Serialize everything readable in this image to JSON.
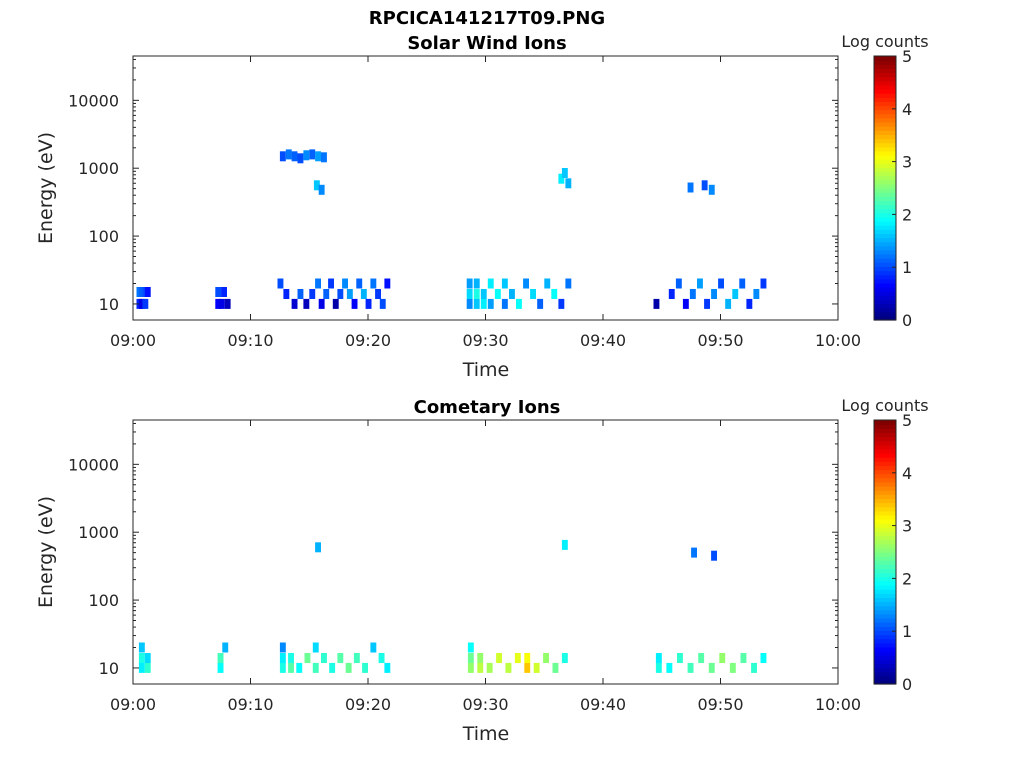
{
  "figure": {
    "title": "RPCICA141217T09.PNG"
  },
  "colorbar_label": "Log counts",
  "colorbar_ticks": [
    "0",
    "1",
    "2",
    "3",
    "4",
    "5"
  ],
  "chart_data": [
    {
      "type": "heatmap",
      "title": "Solar Wind Ions",
      "xlabel": "Time",
      "ylabel": "Energy (eV)",
      "x_ticks": [
        "09:00",
        "09:10",
        "09:20",
        "09:30",
        "09:40",
        "09:50",
        "10:00"
      ],
      "x_range_minutes": [
        0,
        60
      ],
      "y_ticks": [
        "10",
        "100",
        "1000",
        "10000"
      ],
      "y_scale": "log",
      "y_range": [
        5.8,
        45000
      ],
      "colorbar": {
        "label": "Log counts",
        "range": [
          0,
          5
        ],
        "colormap": "jet"
      },
      "cells": [
        [
          0.3,
          10,
          0.8
        ],
        [
          0.3,
          15,
          1.2
        ],
        [
          0.5,
          10,
          0.5
        ],
        [
          0.5,
          15,
          1.1
        ],
        [
          0.8,
          10,
          0.9
        ],
        [
          0.8,
          15,
          1.0
        ],
        [
          1.0,
          15,
          0.7
        ],
        [
          7.0,
          10,
          0.6
        ],
        [
          7.0,
          15,
          1.0
        ],
        [
          7.3,
          10,
          0.5
        ],
        [
          7.5,
          15,
          0.8
        ],
        [
          7.8,
          10,
          0.3
        ],
        [
          12.3,
          20,
          1.0
        ],
        [
          12.8,
          14,
          0.8
        ],
        [
          13.5,
          10,
          0.4
        ],
        [
          14.0,
          14,
          1.1
        ],
        [
          14.5,
          10,
          0.3
        ],
        [
          15.0,
          14,
          0.9
        ],
        [
          15.5,
          20,
          1.2
        ],
        [
          15.8,
          10,
          0.5
        ],
        [
          16.2,
          14,
          1.1
        ],
        [
          16.6,
          20,
          0.9
        ],
        [
          17.0,
          10,
          0.2
        ],
        [
          17.4,
          14,
          1.0
        ],
        [
          17.8,
          20,
          1.3
        ],
        [
          18.2,
          14,
          1.4
        ],
        [
          18.6,
          10,
          0.6
        ],
        [
          19.0,
          20,
          1.1
        ],
        [
          19.4,
          14,
          1.5
        ],
        [
          19.8,
          10,
          0.8
        ],
        [
          20.2,
          20,
          1.2
        ],
        [
          20.6,
          14,
          0.9
        ],
        [
          21.0,
          10,
          1.0
        ],
        [
          21.4,
          20,
          0.7
        ],
        [
          28.4,
          10,
          1.3
        ],
        [
          28.4,
          14,
          1.7
        ],
        [
          28.4,
          20,
          1.4
        ],
        [
          29.0,
          10,
          1.6
        ],
        [
          29.0,
          14,
          2.0
        ],
        [
          29.0,
          20,
          1.5
        ],
        [
          29.6,
          10,
          1.8
        ],
        [
          29.6,
          14,
          1.6
        ],
        [
          30.2,
          10,
          1.4
        ],
        [
          30.2,
          20,
          1.8
        ],
        [
          30.8,
          14,
          1.9
        ],
        [
          31.4,
          10,
          1.2
        ],
        [
          31.4,
          20,
          1.6
        ],
        [
          32.0,
          14,
          1.5
        ],
        [
          32.6,
          10,
          1.9
        ],
        [
          33.2,
          20,
          1.3
        ],
        [
          33.8,
          14,
          1.7
        ],
        [
          34.4,
          10,
          1.1
        ],
        [
          35.0,
          20,
          1.5
        ],
        [
          35.6,
          14,
          1.9
        ],
        [
          36.2,
          10,
          0.9
        ],
        [
          36.8,
          20,
          1.2
        ],
        [
          44.3,
          10,
          0.2
        ],
        [
          45.6,
          14,
          0.8
        ],
        [
          46.2,
          20,
          1.1
        ],
        [
          46.8,
          10,
          0.6
        ],
        [
          47.4,
          14,
          1.2
        ],
        [
          48.0,
          20,
          1.4
        ],
        [
          48.6,
          10,
          0.9
        ],
        [
          49.2,
          14,
          1.3
        ],
        [
          49.8,
          20,
          1.0
        ],
        [
          50.4,
          10,
          1.5
        ],
        [
          51.0,
          14,
          1.6
        ],
        [
          51.6,
          20,
          1.1
        ],
        [
          52.2,
          10,
          0.8
        ],
        [
          52.8,
          14,
          1.3
        ],
        [
          53.4,
          20,
          0.9
        ],
        [
          12.5,
          1500,
          1.0
        ],
        [
          13.0,
          1600,
          1.2
        ],
        [
          13.5,
          1500,
          1.1
        ],
        [
          14.0,
          1400,
          1.0
        ],
        [
          14.5,
          1550,
          1.3
        ],
        [
          15.0,
          1600,
          1.1
        ],
        [
          15.5,
          1500,
          1.4
        ],
        [
          16.0,
          1450,
          1.2
        ],
        [
          15.4,
          560,
          1.6
        ],
        [
          15.8,
          480,
          1.3
        ],
        [
          36.2,
          700,
          1.8
        ],
        [
          36.5,
          850,
          1.6
        ],
        [
          36.8,
          600,
          1.5
        ],
        [
          47.2,
          520,
          1.2
        ],
        [
          48.4,
          560,
          1.0
        ],
        [
          49.0,
          480,
          1.3
        ]
      ]
    },
    {
      "type": "heatmap",
      "title": "Cometary Ions",
      "xlabel": "Time",
      "ylabel": "Energy (eV)",
      "x_ticks": [
        "09:00",
        "09:10",
        "09:20",
        "09:30",
        "09:40",
        "09:50",
        "10:00"
      ],
      "x_range_minutes": [
        0,
        60
      ],
      "y_ticks": [
        "10",
        "100",
        "1000",
        "10000"
      ],
      "y_scale": "log",
      "y_range": [
        5.8,
        45000
      ],
      "colorbar": {
        "label": "Log counts",
        "range": [
          0,
          5
        ],
        "colormap": "jet"
      },
      "cells": [
        [
          0.5,
          10,
          1.8
        ],
        [
          0.5,
          14,
          2.0
        ],
        [
          0.5,
          20,
          1.6
        ],
        [
          1.0,
          10,
          2.1
        ],
        [
          1.0,
          14,
          1.7
        ],
        [
          7.2,
          10,
          1.9
        ],
        [
          7.2,
          14,
          2.2
        ],
        [
          7.6,
          20,
          1.5
        ],
        [
          12.5,
          10,
          2.0
        ],
        [
          12.5,
          14,
          1.8
        ],
        [
          12.5,
          20,
          1.3
        ],
        [
          13.2,
          10,
          2.3
        ],
        [
          13.2,
          14,
          2.0
        ],
        [
          13.9,
          10,
          1.9
        ],
        [
          14.6,
          14,
          2.4
        ],
        [
          15.3,
          10,
          2.2
        ],
        [
          15.3,
          20,
          1.7
        ],
        [
          16.0,
          14,
          2.1
        ],
        [
          16.7,
          10,
          2.0
        ],
        [
          17.4,
          14,
          2.3
        ],
        [
          18.1,
          10,
          2.4
        ],
        [
          18.8,
          14,
          2.2
        ],
        [
          19.5,
          10,
          2.1
        ],
        [
          20.2,
          20,
          1.6
        ],
        [
          20.9,
          14,
          2.0
        ],
        [
          21.4,
          10,
          1.8
        ],
        [
          28.5,
          10,
          2.6
        ],
        [
          28.5,
          14,
          2.4
        ],
        [
          28.5,
          20,
          1.9
        ],
        [
          29.3,
          10,
          2.8
        ],
        [
          29.3,
          14,
          2.6
        ],
        [
          30.1,
          10,
          2.7
        ],
        [
          30.9,
          14,
          2.9
        ],
        [
          31.7,
          10,
          2.8
        ],
        [
          32.5,
          14,
          3.0
        ],
        [
          33.3,
          10,
          3.4
        ],
        [
          33.3,
          14,
          3.1
        ],
        [
          34.1,
          10,
          2.9
        ],
        [
          34.9,
          14,
          2.6
        ],
        [
          35.7,
          10,
          2.4
        ],
        [
          36.5,
          14,
          2.0
        ],
        [
          44.5,
          10,
          2.0
        ],
        [
          44.5,
          14,
          1.8
        ],
        [
          45.4,
          10,
          1.9
        ],
        [
          46.3,
          14,
          2.1
        ],
        [
          47.2,
          10,
          2.2
        ],
        [
          48.1,
          14,
          2.3
        ],
        [
          49.0,
          10,
          2.4
        ],
        [
          49.9,
          14,
          2.6
        ],
        [
          50.8,
          10,
          2.5
        ],
        [
          51.7,
          14,
          2.3
        ],
        [
          52.6,
          10,
          2.1
        ],
        [
          53.4,
          14,
          1.9
        ],
        [
          15.5,
          600,
          1.5
        ],
        [
          36.5,
          650,
          1.8
        ],
        [
          47.5,
          500,
          1.2
        ],
        [
          49.2,
          450,
          1.0
        ]
      ]
    }
  ]
}
